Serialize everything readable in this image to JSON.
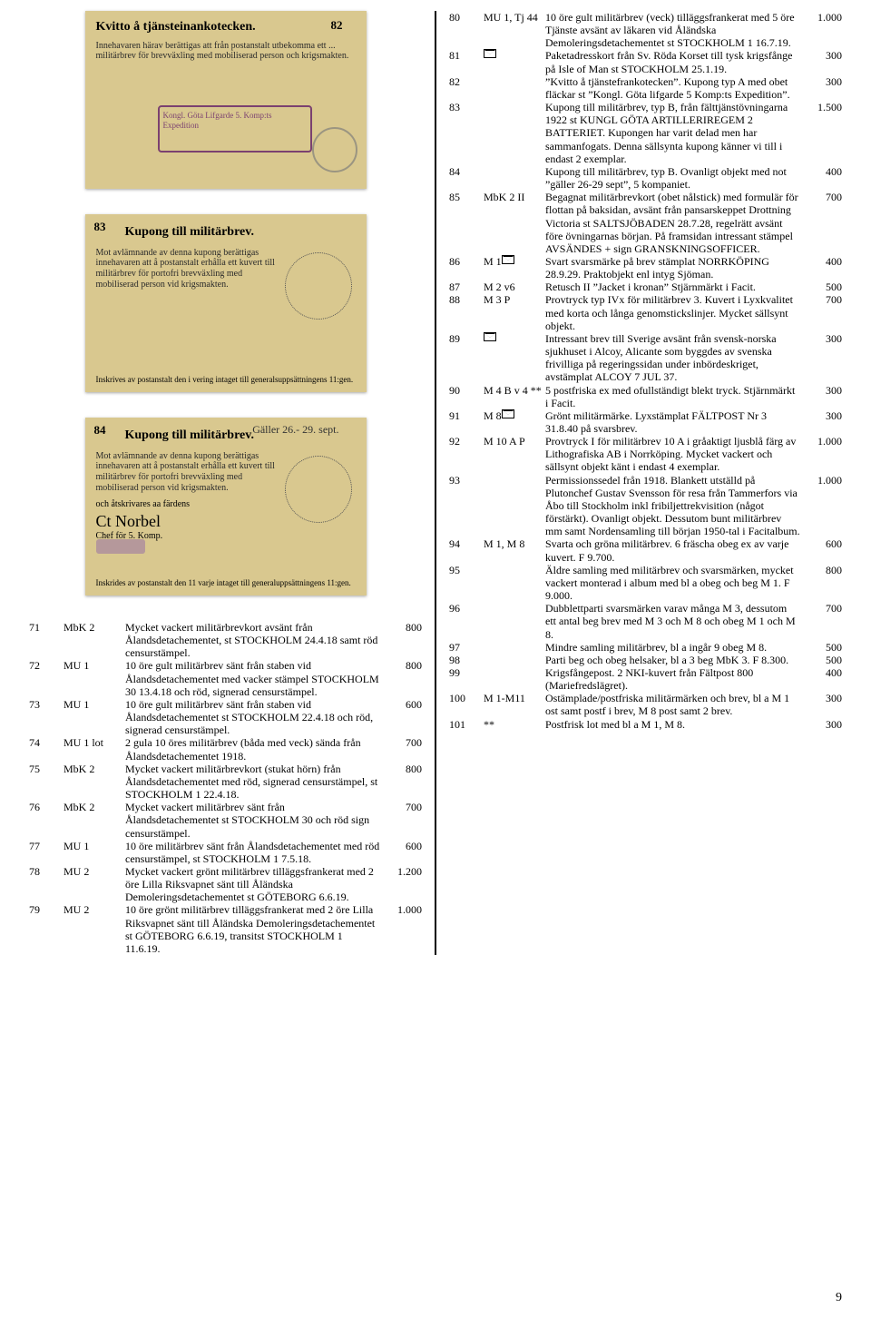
{
  "left_thumbs": {
    "t82": {
      "label": "82",
      "title": "Kvitto å tjänsteinankotecken.",
      "body": "Innehavaren härav berättigas att från postanstalt utbekomma ett ... militärbrev för brevväxling med mobiliserad person och krigsmakten.",
      "stamp": "Kongl. Göta Lifgarde 5. Komp:ts Expedition"
    },
    "t83": {
      "label": "83",
      "title": "Kupong till militärbrev.",
      "body": "Mot avlämnande av denna kupong berättigas innehavaren att å postanstalt erhålla ett kuvert till militärbrev för portofri brevväxling med mobiliserad person vid krigsmakten.",
      "footer": "Inskrives av postanstalt den i vering intaget till generalsuppsättningens 11:gen."
    },
    "t84": {
      "label": "84",
      "title": "Kupong till militärbrev.",
      "hand": "Gäller 26.- 29. sept.",
      "body": "Mot avlämnande av denna kupong berättigas innehavaren att å postanstalt erhålla ett kuvert till militärbrev för portofri brevväxling med mobiliserad person vid krigsmakten.",
      "sign_label": "och åtskrivares aa färdens",
      "sign": "Ct Norbel",
      "chef": "Chef för 5. Komp.",
      "footer": "Inskrides av postanstalt den 11 varje intaget till generaluppsättningens 11:gen."
    }
  },
  "lots_left": [
    {
      "no": "71",
      "cat": "MbK 2",
      "desc": "Mycket vackert militärbrevkort avsänt från Ålandsdetachementet, st STOCKHOLM 24.4.18 samt röd censurstämpel.",
      "price": "800"
    },
    {
      "no": "72",
      "cat": "MU 1",
      "desc": "10 öre gult militärbrev sänt från staben vid Ålandsdetachementet med vacker stämpel STOCKHOLM 30 13.4.18 och röd, signerad censurstämpel.",
      "price": "800"
    },
    {
      "no": "73",
      "cat": "MU 1",
      "desc": "10 öre gult militärbrev sänt från staben vid Ålandsdetachementet st STOCKHOLM 22.4.18 och röd, signerad censurstämpel.",
      "price": "600"
    },
    {
      "no": "74",
      "cat": "MU 1 lot",
      "desc": "2 gula 10 öres militärbrev (båda med veck) sända från Ålandsdetachementet 1918.",
      "price": "700"
    },
    {
      "no": "75",
      "cat": "MbK 2",
      "desc": "Mycket vackert militärbrevkort (stukat hörn) från Ålandsdetachementet med röd, signerad censurstämpel, st STOCKHOLM 1 22.4.18.",
      "price": "800"
    },
    {
      "no": "76",
      "cat": "MbK 2",
      "desc": "Mycket vackert militärbrev sänt från Ålandsdetachementet st STOCKHOLM 30 och röd sign censurstämpel.",
      "price": "700"
    },
    {
      "no": "77",
      "cat": "MU 1",
      "desc": "10 öre militärbrev sänt från Ålandsdetachementet med röd censurstämpel, st STOCKHOLM 1 7.5.18.",
      "price": "600"
    },
    {
      "no": "78",
      "cat": "MU 2",
      "desc": "Mycket vackert grönt militärbrev tilläggsfrankerat med 2 öre Lilla Riksvapnet sänt till Åländska Demoleringsdetachementet st GÖTEBORG 6.6.19.",
      "price": "1.200"
    },
    {
      "no": "79",
      "cat": "MU 2",
      "desc": "10 öre grönt militärbrev tilläggsfrankerat med 2 öre Lilla Riksvapnet sänt till Åländska Demoleringsdetachementet st GÖTEBORG 6.6.19, transitst STOCKHOLM 1 11.6.19.",
      "price": "1.000"
    }
  ],
  "lots_right": [
    {
      "no": "80",
      "cat": "MU 1, Tj 44",
      "desc": "10 öre gult militärbrev (veck) tilläggsfrankerat med 5 öre Tjänste avsänt av läkaren vid Åländska Demoleringsdetachementet st STOCKHOLM 1 16.7.19.",
      "price": "1.000"
    },
    {
      "no": "81",
      "cat": "ENV",
      "desc": "Paketadresskort från Sv. Röda Korset till tysk krigsfånge på Isle of Man st STOCKHOLM 25.1.19.",
      "price": "300"
    },
    {
      "no": "82",
      "cat": "",
      "desc": "”Kvitto å tjänstefrankotecken”. Kupong typ A med obet fläckar st ”Kongl. Göta lifgarde 5 Komp:ts Expedition”.",
      "price": "300"
    },
    {
      "no": "83",
      "cat": "",
      "desc": "Kupong till militärbrev, typ B, från fälttjänstövningarna 1922 st KUNGL GÖTA ARTILLERIREGEM 2 BATTERIET. Kupongen har varit delad men har sammanfogats. Denna sällsynta kupong känner vi till i endast 2 exemplar.",
      "price": "1.500"
    },
    {
      "no": "84",
      "cat": "",
      "desc": "Kupong till militärbrev, typ B. Ovanligt objekt med not ”gäller 26-29 sept”, 5 kompaniet.",
      "price": "400"
    },
    {
      "no": "85",
      "cat": "MbK 2 II",
      "desc": "Begagnat militärbrevkort (obet nålstick) med formulär för flottan på baksidan, avsänt från pansarskeppet Drottning Victoria st SALTSJÖBADEN 28.7.28, regelrätt avsänt före övningarnas början. På framsidan intressant stämpel AVSÄNDES + sign GRANSKNINGSOFFICER.",
      "price": "700"
    },
    {
      "no": "86",
      "cat": "M 1 ENV",
      "desc": "Svart svarsmärke på brev stämplat NORRKÖPING 28.9.29. Praktobjekt enl intyg Sjöman.",
      "price": "400"
    },
    {
      "no": "87",
      "cat": "M 2 v6",
      "desc": "Retusch II ”Jacket i kronan” Stjärnmärkt i Facit.",
      "price": "500"
    },
    {
      "no": "88",
      "cat": "M 3 P",
      "desc": "Provtryck typ IVx för militärbrev 3. Kuvert i Lyxkvalitet med korta och långa genomstickslinjer. Mycket sällsynt objekt.",
      "price": "700"
    },
    {
      "no": "89",
      "cat": "ENV",
      "desc": "Intressant brev till Sverige avsänt från svensk-norska sjukhuset i Alcoy, Alicante som byggdes av svenska frivilliga på regeringssidan under inbördeskriget, avstämplat ALCOY 7 JUL 37.",
      "price": "300"
    },
    {
      "no": "90",
      "cat": "M 4 B v 4 **",
      "desc": "5 postfriska ex med ofullständigt blekt tryck. Stjärnmärkt i Facit.",
      "price": "300"
    },
    {
      "no": "91",
      "cat": "M 8 ENV",
      "desc": "Grönt militärmärke. Lyxstämplat FÄLTPOST Nr 3 31.8.40 på svarsbrev.",
      "price": "300"
    },
    {
      "no": "92",
      "cat": "M 10 A P",
      "desc": "Provtryck I för militärbrev 10 A i gråaktigt ljusblå färg av Lithografiska AB i Norrköping. Mycket vackert och sällsynt objekt känt i endast 4 exemplar.",
      "price": "1.000"
    },
    {
      "no": "93",
      "cat": "",
      "desc": "Permissionssedel från 1918. Blankett utställd på Plutonchef Gustav Svensson för resa från Tammerfors via Åbo till Stockholm inkl fribiljettrekvisition (något förstärkt). Ovanligt objekt. Dessutom bunt militärbrev mm samt Nordensamling till början 1950-tal i Facitalbum.",
      "price": "1.000"
    },
    {
      "no": "94",
      "cat": "M 1, M 8",
      "desc": "Svarta och gröna militärbrev. 6 fräscha obeg ex av varje kuvert. F 9.700.",
      "price": "600"
    },
    {
      "no": "95",
      "cat": "",
      "desc": "Äldre samling med militärbrev och svarsmärken, mycket vackert monterad i album med bl a obeg och beg M 1. F 9.000.",
      "price": "800"
    },
    {
      "no": "96",
      "cat": "",
      "desc": "Dubblettparti svarsmärken varav många M 3, dessutom ett antal beg brev med M 3 och M 8 och obeg M 1 och M 8.",
      "price": "700"
    },
    {
      "no": "97",
      "cat": "",
      "desc": "Mindre samling militärbrev, bl a ingår 9 obeg M 8.",
      "price": "500"
    },
    {
      "no": "98",
      "cat": "",
      "desc": "Parti beg och obeg helsaker, bl a 3 beg MbK 3. F 8.300.",
      "price": "500"
    },
    {
      "no": "99",
      "cat": "",
      "desc": "Krigsfångepost. 2 NKI-kuvert från Fältpost 800 (Mariefredslägret).",
      "price": "400"
    },
    {
      "no": "100",
      "cat": "M 1-M11",
      "desc": "Ostämplade/postfriska militärmärken och brev, bl a M 1 ost samt postf i brev, M 8 post samt 2 brev.",
      "price": "300"
    },
    {
      "no": "101",
      "cat": "**",
      "desc": "Postfrisk lot med bl a M 1, M 8.",
      "price": "300"
    }
  ],
  "page_number": "9"
}
